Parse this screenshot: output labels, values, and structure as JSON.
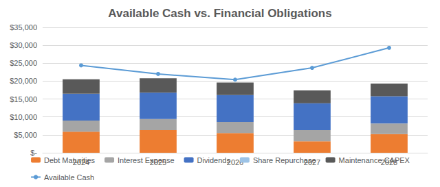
{
  "chart_data": {
    "type": "bar",
    "title": "Available Cash vs. Financial Obligations",
    "categories": [
      "2024",
      "2025",
      "2026",
      "2027",
      "2028"
    ],
    "stacked": true,
    "grid": true,
    "legend": "bottom",
    "ylim": [
      0,
      35000
    ],
    "yticks": [
      {
        "value": 0,
        "label": "$-"
      },
      {
        "value": 5000,
        "label": "$5,000"
      },
      {
        "value": 10000,
        "label": "$10,000"
      },
      {
        "value": 15000,
        "label": "$15,000"
      },
      {
        "value": 20000,
        "label": "$20,000"
      },
      {
        "value": 25000,
        "label": "$25,000"
      },
      {
        "value": 30000,
        "label": "$30,000"
      },
      {
        "value": 35000,
        "label": "$35,000"
      }
    ],
    "series": [
      {
        "name": "Debt Maturities",
        "type": "bar",
        "color": "#ed7d31",
        "values": [
          5900,
          6300,
          5500,
          3200,
          5200
        ]
      },
      {
        "name": "Interest Expense",
        "type": "bar",
        "color": "#a5a5a5",
        "values": [
          3100,
          3100,
          3100,
          3100,
          3000
        ]
      },
      {
        "name": "Dividends",
        "type": "bar",
        "color": "#4472c4",
        "values": [
          7500,
          7400,
          7500,
          7500,
          7600
        ]
      },
      {
        "name": "Share Repurchase",
        "type": "bar",
        "color": "#9dc3e6",
        "values": [
          0,
          0,
          0,
          0,
          0
        ]
      },
      {
        "name": "Maintenance CAPEX",
        "type": "bar",
        "color": "#595959",
        "values": [
          4000,
          4000,
          3500,
          3600,
          3500
        ]
      },
      {
        "name": "Available Cash",
        "type": "line",
        "color": "#5b9bd5",
        "marker": "circle",
        "values": [
          24400,
          22000,
          20400,
          23700,
          29300
        ]
      }
    ]
  }
}
